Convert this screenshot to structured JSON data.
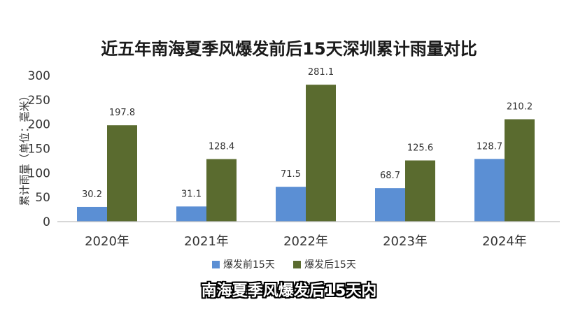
{
  "chart_data": {
    "type": "bar",
    "title": "近五年南海夏季风爆发前后15天深圳累计雨量对比",
    "xlabel": "",
    "ylabel": "累计雨量（单位：毫米）",
    "categories": [
      "2020年",
      "2021年",
      "2022年",
      "2023年",
      "2024年"
    ],
    "series": [
      {
        "name": "爆发前15天",
        "values": [
          30.2,
          31.1,
          71.5,
          68.7,
          128.7
        ],
        "color": "#5B8FD4"
      },
      {
        "name": "爆发后15天",
        "values": [
          197.8,
          128.4,
          281.1,
          125.6,
          210.2
        ],
        "color": "#5A6B2F"
      }
    ],
    "ylim": [
      0,
      300
    ],
    "yticks": [
      0,
      50,
      100,
      150,
      200,
      250,
      300
    ],
    "legend": "bottom",
    "grid": false
  },
  "caption": "南海夏季风爆发后15天内"
}
